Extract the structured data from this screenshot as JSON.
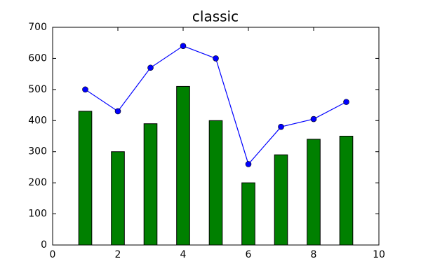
{
  "chart_data": {
    "type": "bar-line",
    "title": "classic",
    "series": [
      {
        "type": "bar",
        "color": "#008000",
        "x": [
          1,
          2,
          3,
          4,
          5,
          6,
          7,
          8,
          9
        ],
        "values": [
          430,
          300,
          390,
          510,
          400,
          200,
          290,
          340,
          350
        ]
      },
      {
        "type": "line",
        "color": "#0000ff",
        "x": [
          1,
          2,
          3,
          4,
          5,
          6,
          7,
          8,
          9
        ],
        "values": [
          500,
          430,
          570,
          640,
          600,
          260,
          380,
          405,
          460
        ]
      }
    ],
    "xlim": [
      0,
      10
    ],
    "xticks": [
      0,
      2,
      4,
      6,
      8,
      10
    ],
    "ylim": [
      0,
      700
    ],
    "yticks": [
      0,
      100,
      200,
      300,
      400,
      500,
      600,
      700
    ],
    "grid": false
  }
}
